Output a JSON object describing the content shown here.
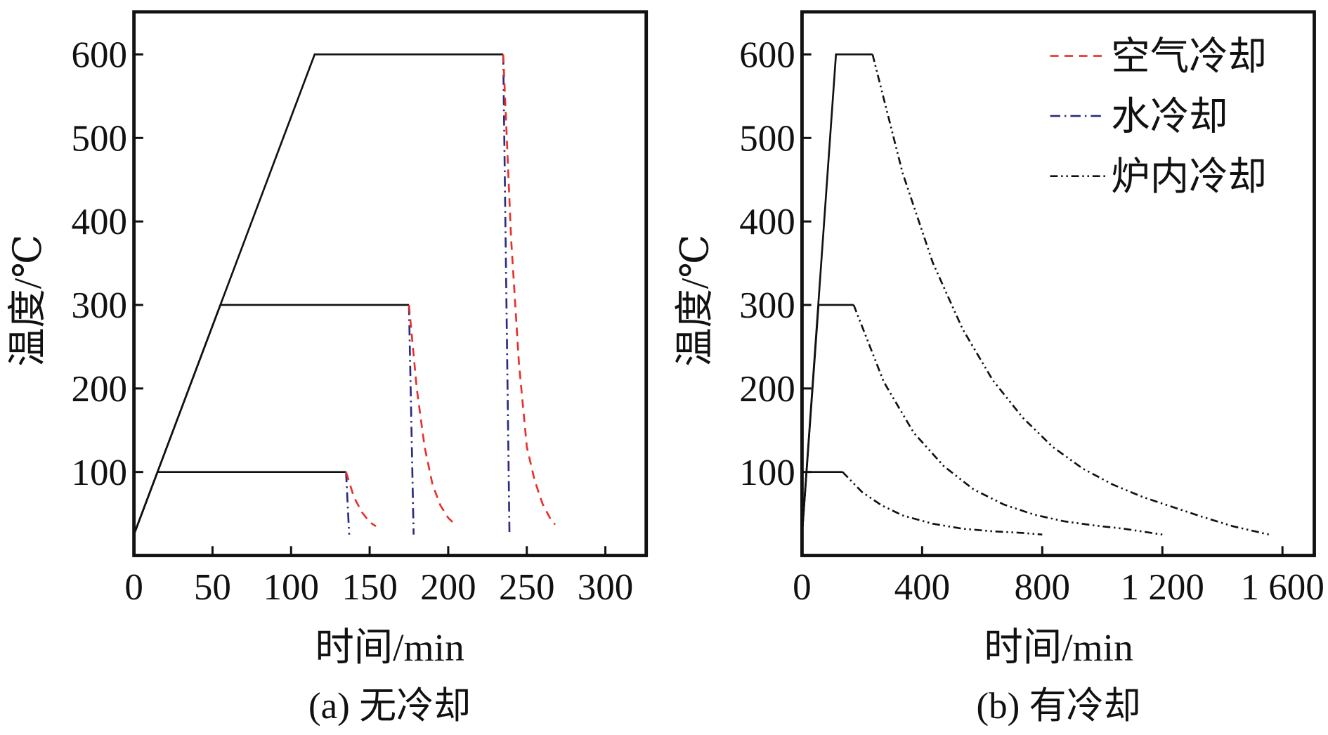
{
  "chart_data": [
    {
      "type": "line",
      "caption": "(a) 无冷却",
      "xlabel": "时间/min",
      "ylabel": "温度/℃",
      "xlim": [
        0,
        326
      ],
      "ylim": [
        0,
        651
      ],
      "xticks": [
        0,
        50,
        100,
        150,
        200,
        250,
        300
      ],
      "xtick_labels": [
        "0",
        "50",
        "100",
        "150",
        "200",
        "250",
        "300"
      ],
      "yticks": [
        100,
        200,
        300,
        400,
        500,
        600
      ],
      "ytick_labels": [
        "100",
        "200",
        "300",
        "400",
        "500",
        "600"
      ],
      "grid": false,
      "series": [
        {
          "style": "solid",
          "color": "#111111",
          "lines": [
            [
              [
                0,
                25
              ],
              [
                115,
                600
              ],
              [
                235,
                600
              ]
            ],
            [
              [
                0,
                25
              ],
              [
                55,
                300
              ],
              [
                175,
                300
              ]
            ],
            [
              [
                0,
                25
              ],
              [
                15,
                100
              ],
              [
                135,
                100
              ]
            ]
          ]
        },
        {
          "style": "dashdot",
          "color": "#2b2b80",
          "lines": [
            [
              [
                135,
                100
              ],
              [
                137,
                25
              ]
            ],
            [
              [
                175,
                300
              ],
              [
                178,
                25
              ]
            ],
            [
              [
                235,
                600
              ],
              [
                239,
                25
              ]
            ]
          ]
        },
        {
          "style": "dashed",
          "color": "#e8302a",
          "lines": [
            [
              [
                135,
                100
              ],
              [
                140,
                70
              ],
              [
                145,
                52
              ],
              [
                150,
                40
              ],
              [
                154,
                35
              ]
            ],
            [
              [
                175,
                300
              ],
              [
                180,
                200
              ],
              [
                185,
                130
              ],
              [
                190,
                85
              ],
              [
                195,
                60
              ],
              [
                200,
                45
              ],
              [
                205,
                36
              ]
            ],
            [
              [
                235,
                600
              ],
              [
                240,
                380
              ],
              [
                245,
                230
              ],
              [
                250,
                130
              ],
              [
                255,
                90
              ],
              [
                260,
                62
              ],
              [
                265,
                44
              ],
              [
                268,
                37
              ]
            ]
          ]
        }
      ]
    },
    {
      "type": "line",
      "caption": "(b) 有冷却",
      "xlabel": "时间/min",
      "ylabel": "温度/℃",
      "xlim": [
        0,
        1706
      ],
      "ylim": [
        0,
        651
      ],
      "xticks": [
        0,
        400,
        800,
        1200,
        1600
      ],
      "xtick_labels": [
        "0",
        "400",
        "800",
        "1 200",
        "1 600"
      ],
      "yticks": [
        100,
        200,
        300,
        400,
        500,
        600
      ],
      "ytick_labels": [
        "100",
        "200",
        "300",
        "400",
        "500",
        "600"
      ],
      "grid": false,
      "legend_position": "top-right",
      "legend": [
        {
          "label": "空气冷却",
          "style": "dashed",
          "color": "#e8302a"
        },
        {
          "label": "水冷却",
          "style": "dashdot",
          "color": "#2b2b80"
        },
        {
          "label": "炉内冷却",
          "style": "dashdotdot",
          "color": "#111111"
        }
      ],
      "series": [
        {
          "style": "solid",
          "color": "#111111",
          "lines": [
            [
              [
                0,
                25
              ],
              [
                113,
                600
              ],
              [
                235,
                600
              ]
            ],
            [
              [
                0,
                25
              ],
              [
                55,
                300
              ],
              [
                172,
                300
              ]
            ],
            [
              [
                0,
                25
              ],
              [
                15,
                100
              ],
              [
                135,
                100
              ]
            ]
          ]
        },
        {
          "label": "炉内冷却",
          "style": "dashdotdot",
          "color": "#111111",
          "lines": [
            [
              [
                235,
                600
              ],
              [
                335,
                458
              ],
              [
                435,
                351
              ],
              [
                535,
                271
              ],
              [
                635,
                210
              ],
              [
                735,
                165
              ],
              [
                835,
                130
              ],
              [
                935,
                104
              ],
              [
                1035,
                85
              ],
              [
                1135,
                70
              ],
              [
                1235,
                58
              ],
              [
                1335,
                46
              ],
              [
                1435,
                35
              ],
              [
                1555,
                25
              ]
            ],
            [
              [
                172,
                300
              ],
              [
                272,
                208
              ],
              [
                372,
                147
              ],
              [
                472,
                107
              ],
              [
                572,
                79
              ],
              [
                672,
                61
              ],
              [
                772,
                49
              ],
              [
                872,
                41
              ],
              [
                972,
                36
              ],
              [
                1072,
                32
              ],
              [
                1200,
                25
              ]
            ],
            [
              [
                135,
                100
              ],
              [
                200,
                76
              ],
              [
                265,
                60
              ],
              [
                335,
                48
              ],
              [
                435,
                38
              ],
              [
                535,
                32
              ],
              [
                635,
                29
              ],
              [
                735,
                27
              ],
              [
                800,
                25
              ]
            ]
          ]
        }
      ]
    }
  ]
}
